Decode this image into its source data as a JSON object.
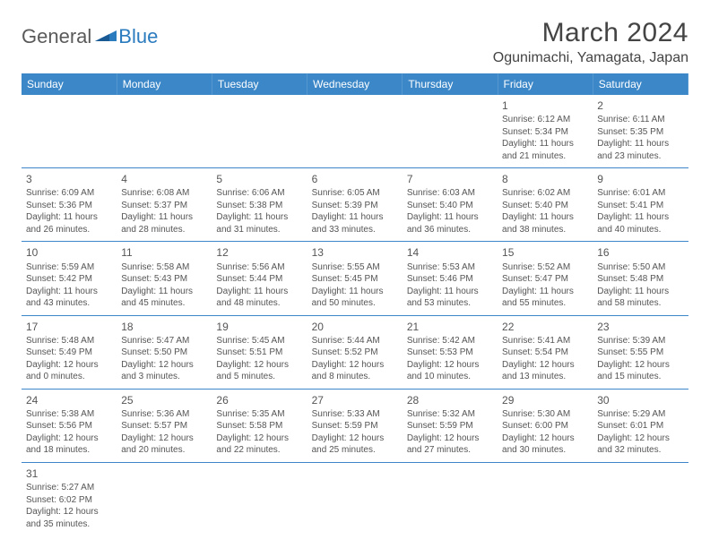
{
  "logo": {
    "text1": "General",
    "text2": "Blue"
  },
  "header": {
    "month_title": "March 2024",
    "location": "Ogunimachi, Yamagata, Japan"
  },
  "colors": {
    "header_bg": "#3b87c8",
    "header_text": "#ffffff",
    "border": "#3b87c8",
    "text": "#555555",
    "logo_gray": "#5a5a5a",
    "logo_blue": "#2b7bbf"
  },
  "day_names": [
    "Sunday",
    "Monday",
    "Tuesday",
    "Wednesday",
    "Thursday",
    "Friday",
    "Saturday"
  ],
  "weeks": [
    [
      null,
      null,
      null,
      null,
      null,
      {
        "d": "1",
        "sr": "6:12 AM",
        "ss": "5:34 PM",
        "dl": "11 hours and 21 minutes."
      },
      {
        "d": "2",
        "sr": "6:11 AM",
        "ss": "5:35 PM",
        "dl": "11 hours and 23 minutes."
      }
    ],
    [
      {
        "d": "3",
        "sr": "6:09 AM",
        "ss": "5:36 PM",
        "dl": "11 hours and 26 minutes."
      },
      {
        "d": "4",
        "sr": "6:08 AM",
        "ss": "5:37 PM",
        "dl": "11 hours and 28 minutes."
      },
      {
        "d": "5",
        "sr": "6:06 AM",
        "ss": "5:38 PM",
        "dl": "11 hours and 31 minutes."
      },
      {
        "d": "6",
        "sr": "6:05 AM",
        "ss": "5:39 PM",
        "dl": "11 hours and 33 minutes."
      },
      {
        "d": "7",
        "sr": "6:03 AM",
        "ss": "5:40 PM",
        "dl": "11 hours and 36 minutes."
      },
      {
        "d": "8",
        "sr": "6:02 AM",
        "ss": "5:40 PM",
        "dl": "11 hours and 38 minutes."
      },
      {
        "d": "9",
        "sr": "6:01 AM",
        "ss": "5:41 PM",
        "dl": "11 hours and 40 minutes."
      }
    ],
    [
      {
        "d": "10",
        "sr": "5:59 AM",
        "ss": "5:42 PM",
        "dl": "11 hours and 43 minutes."
      },
      {
        "d": "11",
        "sr": "5:58 AM",
        "ss": "5:43 PM",
        "dl": "11 hours and 45 minutes."
      },
      {
        "d": "12",
        "sr": "5:56 AM",
        "ss": "5:44 PM",
        "dl": "11 hours and 48 minutes."
      },
      {
        "d": "13",
        "sr": "5:55 AM",
        "ss": "5:45 PM",
        "dl": "11 hours and 50 minutes."
      },
      {
        "d": "14",
        "sr": "5:53 AM",
        "ss": "5:46 PM",
        "dl": "11 hours and 53 minutes."
      },
      {
        "d": "15",
        "sr": "5:52 AM",
        "ss": "5:47 PM",
        "dl": "11 hours and 55 minutes."
      },
      {
        "d": "16",
        "sr": "5:50 AM",
        "ss": "5:48 PM",
        "dl": "11 hours and 58 minutes."
      }
    ],
    [
      {
        "d": "17",
        "sr": "5:48 AM",
        "ss": "5:49 PM",
        "dl": "12 hours and 0 minutes."
      },
      {
        "d": "18",
        "sr": "5:47 AM",
        "ss": "5:50 PM",
        "dl": "12 hours and 3 minutes."
      },
      {
        "d": "19",
        "sr": "5:45 AM",
        "ss": "5:51 PM",
        "dl": "12 hours and 5 minutes."
      },
      {
        "d": "20",
        "sr": "5:44 AM",
        "ss": "5:52 PM",
        "dl": "12 hours and 8 minutes."
      },
      {
        "d": "21",
        "sr": "5:42 AM",
        "ss": "5:53 PM",
        "dl": "12 hours and 10 minutes."
      },
      {
        "d": "22",
        "sr": "5:41 AM",
        "ss": "5:54 PM",
        "dl": "12 hours and 13 minutes."
      },
      {
        "d": "23",
        "sr": "5:39 AM",
        "ss": "5:55 PM",
        "dl": "12 hours and 15 minutes."
      }
    ],
    [
      {
        "d": "24",
        "sr": "5:38 AM",
        "ss": "5:56 PM",
        "dl": "12 hours and 18 minutes."
      },
      {
        "d": "25",
        "sr": "5:36 AM",
        "ss": "5:57 PM",
        "dl": "12 hours and 20 minutes."
      },
      {
        "d": "26",
        "sr": "5:35 AM",
        "ss": "5:58 PM",
        "dl": "12 hours and 22 minutes."
      },
      {
        "d": "27",
        "sr": "5:33 AM",
        "ss": "5:59 PM",
        "dl": "12 hours and 25 minutes."
      },
      {
        "d": "28",
        "sr": "5:32 AM",
        "ss": "5:59 PM",
        "dl": "12 hours and 27 minutes."
      },
      {
        "d": "29",
        "sr": "5:30 AM",
        "ss": "6:00 PM",
        "dl": "12 hours and 30 minutes."
      },
      {
        "d": "30",
        "sr": "5:29 AM",
        "ss": "6:01 PM",
        "dl": "12 hours and 32 minutes."
      }
    ],
    [
      {
        "d": "31",
        "sr": "5:27 AM",
        "ss": "6:02 PM",
        "dl": "12 hours and 35 minutes."
      },
      null,
      null,
      null,
      null,
      null,
      null
    ]
  ],
  "labels": {
    "sunrise": "Sunrise:",
    "sunset": "Sunset:",
    "daylight": "Daylight:"
  }
}
